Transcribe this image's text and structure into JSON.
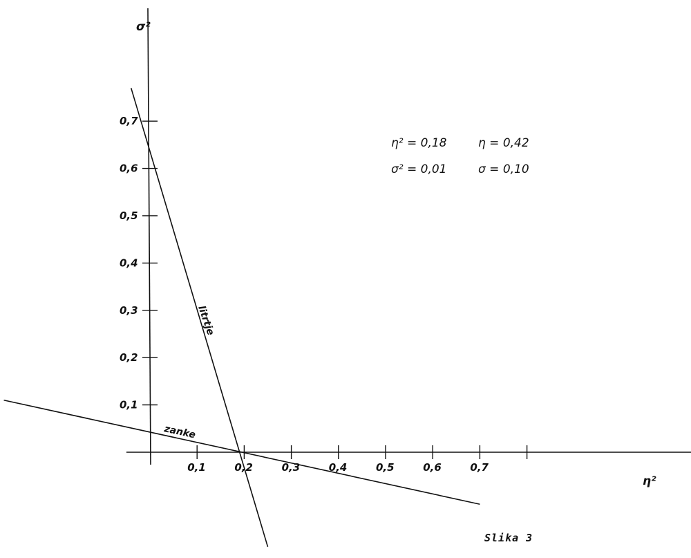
{
  "chart_data": {
    "type": "line",
    "title": "",
    "caption": "Slika 3",
    "xlabel": "η²",
    "ylabel": "σ²",
    "xlim": [
      -0.05,
      1.15
    ],
    "ylim": [
      -0.2,
      0.94
    ],
    "x_ticks": [
      {
        "value": 0.1,
        "label": "0,1"
      },
      {
        "value": 0.2,
        "label": "0,2"
      },
      {
        "value": 0.3,
        "label": "0,3"
      },
      {
        "value": 0.4,
        "label": "0,4"
      },
      {
        "value": 0.5,
        "label": "0,5"
      },
      {
        "value": 0.6,
        "label": "0,6"
      },
      {
        "value": 0.7,
        "label": "0,7"
      },
      {
        "value": 0.8,
        "label": ""
      }
    ],
    "y_ticks": [
      {
        "value": 0.1,
        "label": "0,1"
      },
      {
        "value": 0.2,
        "label": "0,2"
      },
      {
        "value": 0.3,
        "label": "0,3"
      },
      {
        "value": 0.4,
        "label": "0,4"
      },
      {
        "value": 0.5,
        "label": "0,5"
      },
      {
        "value": 0.6,
        "label": "0,6"
      },
      {
        "value": 0.7,
        "label": "0,7"
      }
    ],
    "series": [
      {
        "name": "litrtje",
        "x": [
          -0.04,
          0.25
        ],
        "y": [
          0.77,
          -0.2
        ]
      },
      {
        "name": "zanke",
        "x": [
          -0.31,
          0.7
        ],
        "y": [
          0.11,
          -0.11
        ]
      }
    ],
    "annotations": [
      {
        "line1_left": "η² = 0,18",
        "line1_right": "η = 0,42"
      },
      {
        "line2_left": "σ² = 0,01",
        "line2_right": "σ = 0,10"
      }
    ],
    "grid": false,
    "legend": "none"
  }
}
